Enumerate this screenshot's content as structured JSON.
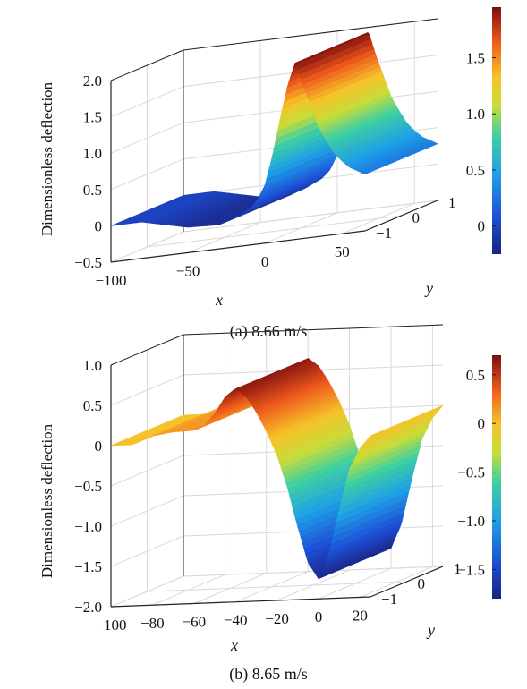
{
  "chart_data": [
    {
      "type": "surface",
      "title": "",
      "caption": "(a) 8.66 m/s",
      "zlabel": "Dimensionless deflection",
      "xlabel": "x",
      "ylabel": "y",
      "xlim": [
        -100,
        65
      ],
      "ylim": [
        -1,
        1
      ],
      "zlim": [
        -0.5,
        2.0
      ],
      "x_ticks": [
        "−100",
        "−50",
        "0",
        "50"
      ],
      "y_ticks": [
        "−1",
        "0",
        "1"
      ],
      "z_ticks": [
        "−0.5",
        "0",
        "0.5",
        "1.0",
        "1.5",
        "2.0"
      ],
      "colorbar": {
        "min": -0.25,
        "max": 1.95,
        "ticks": [
          "0",
          "0.5",
          "1.0",
          "1.5"
        ]
      },
      "grid": true,
      "colormap": "jet",
      "peak": {
        "x": 20,
        "z": 1.95
      },
      "profile": [
        {
          "x": -100,
          "z": 0.0
        },
        {
          "x": -80,
          "z": 0.0
        },
        {
          "x": -70,
          "z": -0.05
        },
        {
          "x": -50,
          "z": -0.15
        },
        {
          "x": -30,
          "z": -0.17
        },
        {
          "x": -20,
          "z": -0.1
        },
        {
          "x": -10,
          "z": 0.0
        },
        {
          "x": -5,
          "z": 0.1
        },
        {
          "x": 0,
          "z": 0.3
        },
        {
          "x": 5,
          "z": 0.7
        },
        {
          "x": 10,
          "z": 1.2
        },
        {
          "x": 15,
          "z": 1.65
        },
        {
          "x": 20,
          "z": 1.95
        },
        {
          "x": 25,
          "z": 1.6
        },
        {
          "x": 30,
          "z": 1.3
        },
        {
          "x": 35,
          "z": 1.0
        },
        {
          "x": 40,
          "z": 0.8
        },
        {
          "x": 45,
          "z": 0.62
        },
        {
          "x": 50,
          "z": 0.5
        },
        {
          "x": 55,
          "z": 0.4
        },
        {
          "x": 65,
          "z": 0.28
        }
      ]
    },
    {
      "type": "surface",
      "title": "",
      "caption": "(b) 8.65 m/s",
      "zlabel": "Dimensionless deflection",
      "xlabel": "x",
      "ylabel": "y",
      "xlim": [
        -100,
        25
      ],
      "ylim": [
        -1,
        1
      ],
      "zlim": [
        -2.0,
        1.0
      ],
      "x_ticks": [
        "−100",
        "−80",
        "−60",
        "−40",
        "−20",
        "0",
        "20"
      ],
      "y_ticks": [
        "−1",
        "0",
        "1"
      ],
      "z_ticks": [
        "−2.0",
        "−1.5",
        "−1.0",
        "−0.5",
        "0",
        "0.5",
        "1.0"
      ],
      "colorbar": {
        "min": -1.8,
        "max": 0.7,
        "ticks": [
          "−1.5",
          "−1.0",
          "−0.5",
          "0",
          "0.5"
        ]
      },
      "grid": true,
      "colormap": "jet",
      "peak": {
        "x": -40,
        "z": 0.65
      },
      "trough": {
        "x": 0,
        "z": -1.75
      },
      "profile": [
        {
          "x": -100,
          "z": 0.0
        },
        {
          "x": -90,
          "z": 0.0
        },
        {
          "x": -85,
          "z": 0.05
        },
        {
          "x": -80,
          "z": 0.1
        },
        {
          "x": -70,
          "z": 0.14
        },
        {
          "x": -60,
          "z": 0.15
        },
        {
          "x": -55,
          "z": 0.2
        },
        {
          "x": -50,
          "z": 0.35
        },
        {
          "x": -45,
          "z": 0.55
        },
        {
          "x": -40,
          "z": 0.65
        },
        {
          "x": -35,
          "z": 0.55
        },
        {
          "x": -30,
          "z": 0.35
        },
        {
          "x": -25,
          "z": 0.1
        },
        {
          "x": -20,
          "z": -0.2
        },
        {
          "x": -15,
          "z": -0.6
        },
        {
          "x": -10,
          "z": -1.1
        },
        {
          "x": -5,
          "z": -1.55
        },
        {
          "x": 0,
          "z": -1.75
        },
        {
          "x": 5,
          "z": -1.45
        },
        {
          "x": 10,
          "z": -0.9
        },
        {
          "x": 15,
          "z": -0.4
        },
        {
          "x": 20,
          "z": -0.15
        },
        {
          "x": 25,
          "z": 0.0
        }
      ]
    }
  ]
}
